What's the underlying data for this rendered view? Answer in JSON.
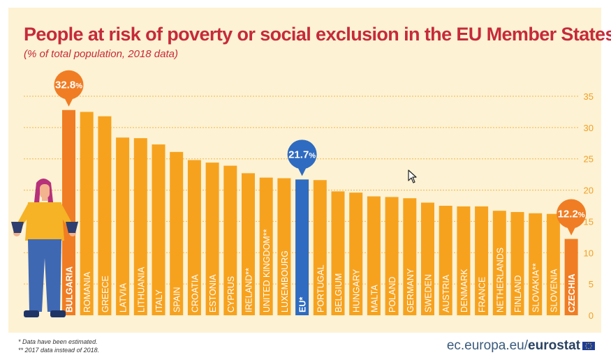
{
  "header": {
    "title": "People at risk of poverty or social exclusion in the EU Member States",
    "subtitle": "(% of total population, 2018 data)"
  },
  "footnotes": [
    "* Data have been estimated.",
    "** 2017 data instead of 2018."
  ],
  "footer": {
    "site": "ec.europa.eu/",
    "brand": "eurostat"
  },
  "colors": {
    "bar_default": "#f7a21e",
    "bar_highlight": "#f07d24",
    "bar_eu": "#2f6bc0",
    "callout_orange": "#f07d24",
    "callout_blue": "#2f6bc0",
    "title": "#c62a3b",
    "background": "#fdf2d3"
  },
  "icons": [
    "person-empty-pockets-icon",
    "mouse-pointer-icon",
    "eu-flag-icon"
  ],
  "chart_data": {
    "type": "bar",
    "title": "People at risk of poverty or social exclusion in the EU Member States",
    "subtitle": "(% of total population, 2018 data)",
    "ylim": [
      0,
      35
    ],
    "yticks": [
      0,
      5,
      10,
      15,
      20,
      25,
      30,
      35
    ],
    "grid": true,
    "categories": [
      "BULGARIA",
      "ROMANIA",
      "GREECE",
      "LATVIA",
      "LITHUANIA",
      "ITALY",
      "SPAIN",
      "CROATIA",
      "ESTONIA",
      "CYPRUS",
      "IRELAND**",
      "UNITED KINGDOM**",
      "LUXEMBOURG",
      "EU*",
      "PORTUGAL",
      "BELGIUM",
      "HUNGARY",
      "MALTA",
      "POLAND",
      "GERMANY",
      "SWEDEN",
      "AUSTRIA",
      "DENMARK",
      "FRANCE",
      "NETHERLANDS",
      "FINLAND",
      "SLOVAKIA**",
      "SLOVENIA",
      "CZECHIA"
    ],
    "values": [
      32.8,
      32.5,
      31.8,
      28.4,
      28.3,
      27.3,
      26.1,
      24.8,
      24.4,
      23.9,
      22.7,
      22.0,
      21.9,
      21.7,
      21.6,
      19.8,
      19.6,
      19.0,
      18.9,
      18.7,
      18.0,
      17.5,
      17.4,
      17.4,
      16.7,
      16.5,
      16.3,
      16.2,
      12.2
    ],
    "highlight": [
      "BULGARIA",
      "CZECHIA"
    ],
    "eu_category": "EU*",
    "callouts": [
      {
        "category": "BULGARIA",
        "label": "32.8",
        "unit": "%"
      },
      {
        "category": "EU*",
        "label": "21.7",
        "unit": "%"
      },
      {
        "category": "CZECHIA",
        "label": "12.2",
        "unit": "%"
      }
    ]
  }
}
